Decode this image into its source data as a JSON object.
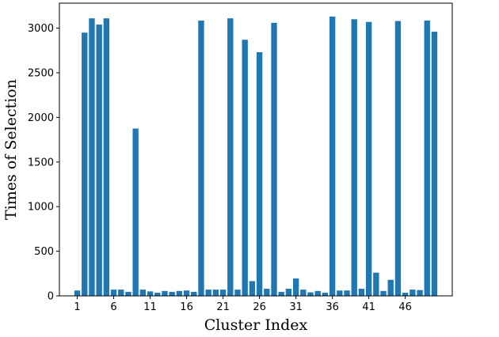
{
  "chart_data": {
    "type": "bar",
    "title": "",
    "xlabel": "Cluster Index",
    "ylabel": "Times of Selection",
    "x": [
      1,
      2,
      3,
      4,
      5,
      6,
      7,
      8,
      9,
      10,
      11,
      12,
      13,
      14,
      15,
      16,
      17,
      18,
      19,
      20,
      21,
      22,
      23,
      24,
      25,
      26,
      27,
      28,
      29,
      30,
      31,
      32,
      33,
      34,
      35,
      36,
      37,
      38,
      39,
      40,
      41,
      42,
      43,
      44,
      45,
      46,
      47,
      48,
      49,
      50
    ],
    "values": [
      60,
      2950,
      3110,
      3040,
      3110,
      70,
      70,
      45,
      1875,
      70,
      50,
      35,
      55,
      45,
      55,
      60,
      45,
      3085,
      70,
      70,
      70,
      3110,
      70,
      2870,
      165,
      2730,
      80,
      3060,
      45,
      80,
      195,
      70,
      40,
      55,
      35,
      3130,
      60,
      60,
      3100,
      80,
      3070,
      260,
      55,
      180,
      3080,
      35,
      70,
      65,
      3085,
      2960
    ],
    "xticks": [
      1,
      6,
      11,
      16,
      21,
      26,
      31,
      36,
      41,
      46
    ],
    "yticks": [
      0,
      500,
      1000,
      1500,
      2000,
      2500,
      3000
    ],
    "xlim": [
      -1.45,
      52.45
    ],
    "ylim": [
      0,
      3280
    ],
    "bar_color": "#1f77b4",
    "grid": false,
    "legend": "none"
  }
}
